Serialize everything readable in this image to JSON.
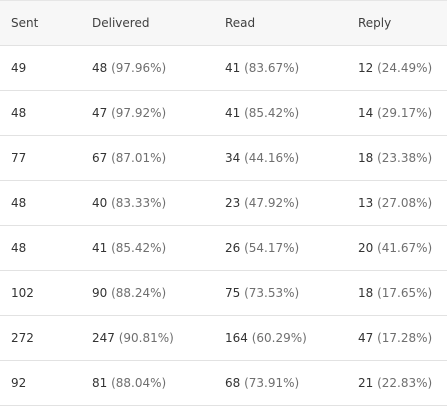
{
  "table": {
    "headers": [
      "Sent",
      "Delivered",
      "Read",
      "Reply"
    ],
    "rows": [
      {
        "sent": "49",
        "delivered": {
          "count": "48",
          "pct": "(97.96%)"
        },
        "read": {
          "count": "41",
          "pct": "(83.67%)"
        },
        "reply": {
          "count": "12",
          "pct": "(24.49%)"
        }
      },
      {
        "sent": "48",
        "delivered": {
          "count": "47",
          "pct": "(97.92%)"
        },
        "read": {
          "count": "41",
          "pct": "(85.42%)"
        },
        "reply": {
          "count": "14",
          "pct": "(29.17%)"
        }
      },
      {
        "sent": "77",
        "delivered": {
          "count": "67",
          "pct": "(87.01%)"
        },
        "read": {
          "count": "34",
          "pct": "(44.16%)"
        },
        "reply": {
          "count": "18",
          "pct": "(23.38%)"
        }
      },
      {
        "sent": "48",
        "delivered": {
          "count": "40",
          "pct": "(83.33%)"
        },
        "read": {
          "count": "23",
          "pct": "(47.92%)"
        },
        "reply": {
          "count": "13",
          "pct": "(27.08%)"
        }
      },
      {
        "sent": "48",
        "delivered": {
          "count": "41",
          "pct": "(85.42%)"
        },
        "read": {
          "count": "26",
          "pct": "(54.17%)"
        },
        "reply": {
          "count": "20",
          "pct": "(41.67%)"
        }
      },
      {
        "sent": "102",
        "delivered": {
          "count": "90",
          "pct": "(88.24%)"
        },
        "read": {
          "count": "75",
          "pct": "(73.53%)"
        },
        "reply": {
          "count": "18",
          "pct": "(17.65%)"
        }
      },
      {
        "sent": "272",
        "delivered": {
          "count": "247",
          "pct": "(90.81%)"
        },
        "read": {
          "count": "164",
          "pct": "(60.29%)"
        },
        "reply": {
          "count": "47",
          "pct": "(17.28%)"
        }
      },
      {
        "sent": "92",
        "delivered": {
          "count": "81",
          "pct": "(88.04%)"
        },
        "read": {
          "count": "68",
          "pct": "(73.91%)"
        },
        "reply": {
          "count": "21",
          "pct": "(22.83%)"
        }
      }
    ]
  }
}
